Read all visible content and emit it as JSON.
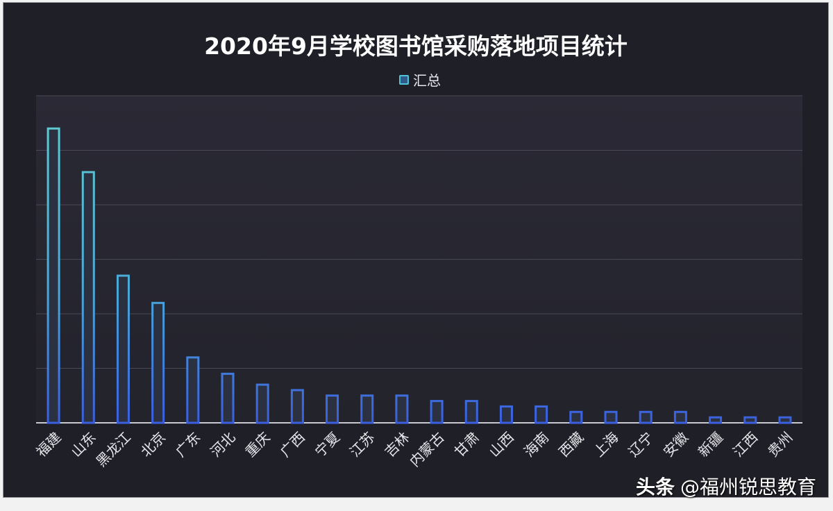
{
  "chart_data": {
    "type": "bar",
    "title": "2020年9月学校图书馆采购落地项目统计",
    "legend": {
      "entries": [
        "汇总"
      ],
      "placement": "top"
    },
    "categories": [
      "福建",
      "山东",
      "黑龙江",
      "北京",
      "广东",
      "河北",
      "重庆",
      "广西",
      "宁夏",
      "江苏",
      "吉林",
      "内蒙古",
      "甘肃",
      "山西",
      "海南",
      "西藏",
      "上海",
      "辽宁",
      "安徽",
      "新疆",
      "江西",
      "贵州"
    ],
    "series": [
      {
        "name": "汇总",
        "values": [
          54,
          46,
          27,
          22,
          12,
          9,
          7,
          6,
          5,
          5,
          5,
          4,
          4,
          3,
          3,
          2,
          2,
          2,
          2,
          1,
          1,
          1
        ]
      }
    ],
    "ylim": [
      0,
      60
    ],
    "grid": true,
    "y_tick_labels_shown": false,
    "colors": {
      "bar_outline": "#5ccbd6",
      "bar_bottom": "#3a6fe0",
      "background": "#1f1f27",
      "plot_background": "#2a2935"
    }
  },
  "watermark": {
    "platform": "头条",
    "account": "@福州锐思教育"
  }
}
